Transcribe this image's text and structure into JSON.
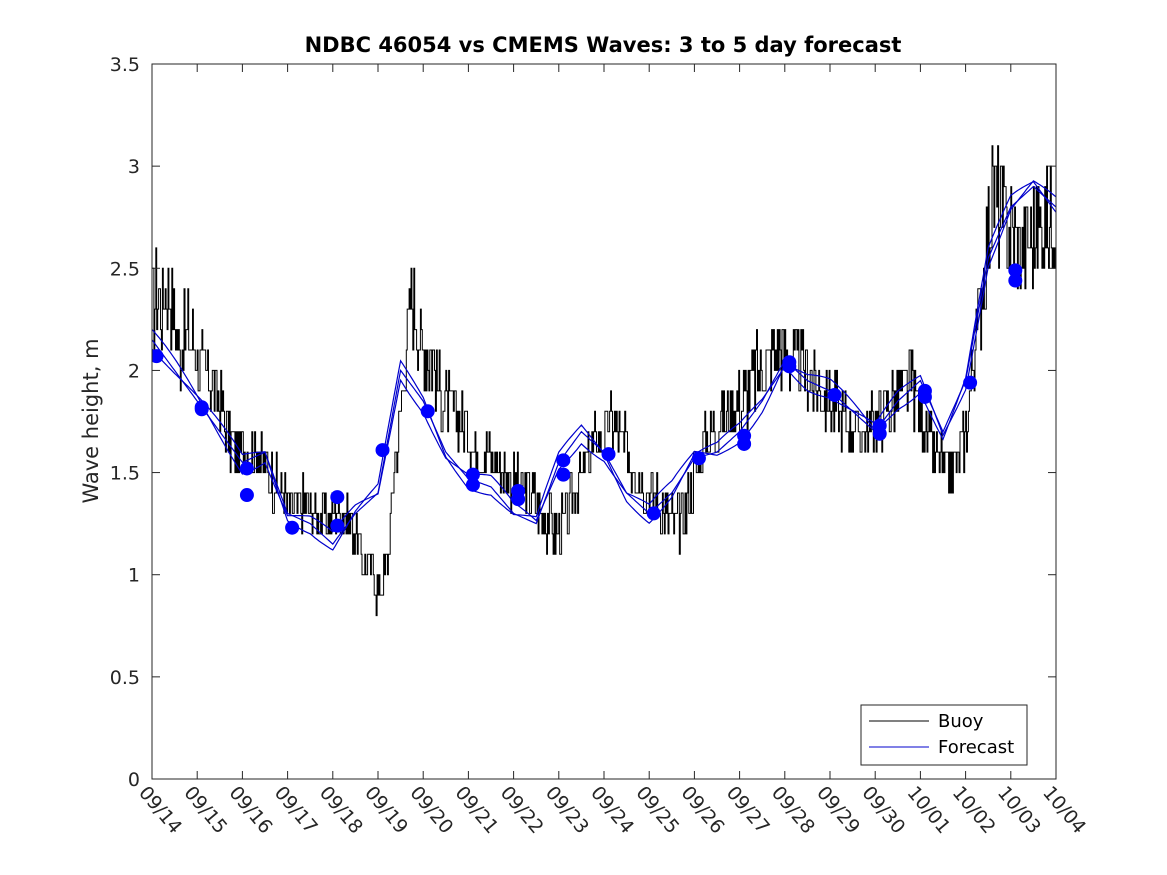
{
  "chart_data": {
    "type": "line",
    "title": "NDBC 46054 vs CMEMS Waves: 3 to 5 day forecast",
    "xlabel": "",
    "ylabel": "Wave height, m",
    "xlim": [
      0,
      20
    ],
    "ylim": [
      0,
      3.5
    ],
    "yticks": [
      0,
      0.5,
      1,
      1.5,
      2,
      2.5,
      3,
      3.5
    ],
    "ytick_labels": [
      "0",
      "0.5",
      "1",
      "1.5",
      "2",
      "2.5",
      "3",
      "3.5"
    ],
    "xtick_labels": [
      "09/14",
      "09/15",
      "09/16",
      "09/17",
      "09/18",
      "09/19",
      "09/20",
      "09/21",
      "09/22",
      "09/23",
      "09/24",
      "09/25",
      "09/26",
      "09/27",
      "09/28",
      "09/29",
      "09/30",
      "10/01",
      "10/02",
      "10/03",
      "10/04"
    ],
    "x_units": "days since 09/14",
    "legend": {
      "placement": "bottom-right",
      "entries": [
        {
          "label": "Buoy",
          "color": "#000000"
        },
        {
          "label": "Forecast",
          "color": "#0000cc"
        }
      ]
    },
    "series": [
      {
        "name": "Buoy",
        "color": "#000000",
        "style": "step-noisy",
        "x": [
          0.0,
          0.1,
          0.2,
          0.3,
          0.45,
          0.6,
          0.8,
          0.95,
          1.1,
          1.3,
          1.5,
          1.7,
          1.9,
          2.1,
          2.3,
          2.5,
          2.7,
          2.9,
          3.1,
          3.3,
          3.5,
          3.7,
          3.9,
          4.1,
          4.3,
          4.5,
          4.7,
          4.9,
          5.0,
          5.2,
          5.35,
          5.5,
          5.6,
          5.7,
          5.8,
          5.9,
          6.0,
          6.2,
          6.4,
          6.6,
          6.8,
          7.0,
          7.2,
          7.4,
          7.6,
          7.8,
          8.0,
          8.2,
          8.4,
          8.6,
          8.8,
          9.0,
          9.2,
          9.4,
          9.6,
          9.8,
          10.0,
          10.2,
          10.4,
          10.6,
          10.8,
          11.0,
          11.2,
          11.4,
          11.6,
          11.8,
          12.0,
          12.2,
          12.4,
          12.6,
          12.8,
          13.0,
          13.2,
          13.4,
          13.6,
          13.8,
          14.0,
          14.2,
          14.4,
          14.6,
          14.8,
          15.0,
          15.2,
          15.4,
          15.6,
          15.8,
          16.0,
          16.2,
          16.4,
          16.6,
          16.8,
          17.0,
          17.2,
          17.4,
          17.6,
          17.8,
          18.0,
          18.2,
          18.4,
          18.6,
          18.8,
          19.0,
          19.2,
          19.4,
          19.6,
          19.8,
          20.0
        ],
        "values": [
          2.3,
          2.4,
          2.3,
          2.45,
          2.3,
          2.1,
          2.2,
          2.1,
          2.0,
          1.95,
          1.85,
          1.65,
          1.6,
          1.6,
          1.6,
          1.55,
          1.45,
          1.4,
          1.3,
          1.35,
          1.3,
          1.3,
          1.25,
          1.35,
          1.3,
          1.2,
          1.05,
          1.0,
          0.9,
          1.05,
          1.5,
          1.8,
          2.1,
          2.3,
          2.35,
          2.2,
          2.1,
          2.05,
          1.9,
          1.8,
          1.75,
          1.7,
          1.6,
          1.6,
          1.55,
          1.5,
          1.45,
          1.4,
          1.4,
          1.3,
          1.25,
          1.2,
          1.3,
          1.45,
          1.55,
          1.65,
          1.7,
          1.75,
          1.65,
          1.55,
          1.5,
          1.4,
          1.35,
          1.3,
          1.25,
          1.3,
          1.5,
          1.65,
          1.7,
          1.75,
          1.8,
          1.85,
          1.9,
          2.0,
          2.05,
          2.1,
          2.1,
          2.05,
          2.0,
          1.95,
          1.9,
          1.85,
          1.8,
          1.75,
          1.7,
          1.7,
          1.75,
          1.8,
          1.85,
          1.9,
          1.95,
          1.8,
          1.65,
          1.55,
          1.5,
          1.55,
          1.7,
          2.1,
          2.5,
          2.9,
          2.75,
          2.7,
          2.6,
          2.65,
          2.7,
          2.75,
          2.8
        ]
      },
      {
        "name": "Forecast",
        "color": "#0000cc",
        "style": "lines",
        "x": [
          0.0,
          0.5,
          1.0,
          1.5,
          2.0,
          2.5,
          3.0,
          3.5,
          4.0,
          4.5,
          5.0,
          5.5,
          6.0,
          6.5,
          7.0,
          7.5,
          8.0,
          8.5,
          9.0,
          9.5,
          10.0,
          10.5,
          11.0,
          11.5,
          12.0,
          12.5,
          13.0,
          13.5,
          14.0,
          14.5,
          15.0,
          15.5,
          16.0,
          16.5,
          17.0,
          17.5,
          18.0,
          18.5,
          19.0,
          19.5,
          20.0
        ],
        "values": [
          2.15,
          2.0,
          1.85,
          1.7,
          1.55,
          1.6,
          1.3,
          1.25,
          1.15,
          1.3,
          1.4,
          2.0,
          1.85,
          1.6,
          1.47,
          1.43,
          1.3,
          1.25,
          1.55,
          1.7,
          1.6,
          1.4,
          1.3,
          1.4,
          1.57,
          1.6,
          1.7,
          1.85,
          2.05,
          1.95,
          1.9,
          1.8,
          1.7,
          1.85,
          1.95,
          1.7,
          1.95,
          2.55,
          2.8,
          2.9,
          2.8
        ]
      },
      {
        "name": "Forecast points",
        "color": "#0000ff",
        "style": "markers",
        "x": [
          0.1,
          1.1,
          1.1,
          2.1,
          2.1,
          3.1,
          4.1,
          4.1,
          5.1,
          6.1,
          7.1,
          7.1,
          8.1,
          8.1,
          9.1,
          9.1,
          10.1,
          11.1,
          12.1,
          13.1,
          13.1,
          14.1,
          14.1,
          15.1,
          16.1,
          16.1,
          17.1,
          17.1,
          18.1,
          19.1,
          19.1
        ],
        "values": [
          2.07,
          1.82,
          1.81,
          1.52,
          1.39,
          1.23,
          1.38,
          1.24,
          1.61,
          1.8,
          1.49,
          1.44,
          1.41,
          1.37,
          1.56,
          1.49,
          1.59,
          1.3,
          1.57,
          1.68,
          1.64,
          2.04,
          2.02,
          1.88,
          1.73,
          1.69,
          1.9,
          1.87,
          1.94,
          2.49,
          2.44
        ]
      }
    ]
  }
}
